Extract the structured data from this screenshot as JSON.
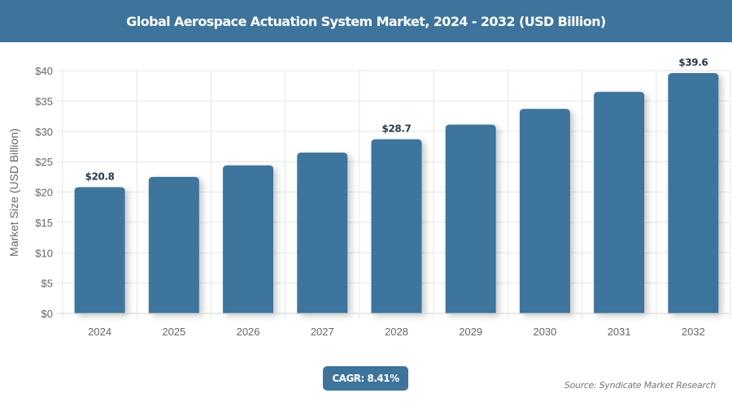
{
  "header": {
    "title": "Global Aerospace Actuation System Market, 2024 - 2032 (USD Billion)"
  },
  "chart_data": {
    "type": "bar",
    "title": "Global Aerospace Actuation System Market, 2024 - 2032 (USD Billion)",
    "xlabel": "",
    "ylabel": "Market Size (USD Billion)",
    "categories": [
      "2024",
      "2025",
      "2026",
      "2027",
      "2028",
      "2029",
      "2030",
      "2031",
      "2032"
    ],
    "values": [
      20.8,
      22.5,
      24.4,
      26.5,
      28.7,
      31.1,
      33.7,
      36.5,
      39.6
    ],
    "data_labels": {
      "0": "$20.8",
      "4": "$28.7",
      "8": "$39.6"
    },
    "ylim": [
      0,
      40
    ],
    "yticks": [
      0,
      5,
      10,
      15,
      20,
      25,
      30,
      35,
      40
    ],
    "ytick_labels": [
      "$0",
      "$5",
      "$10",
      "$15",
      "$20",
      "$25",
      "$30",
      "$35",
      "$40"
    ],
    "grid": true,
    "legend": null,
    "bar_color": "#3e749c"
  },
  "badge": {
    "cagr_label": "CAGR: 8.41%"
  },
  "footer": {
    "source": "Source: Syndicate Market Research"
  },
  "colors": {
    "accent": "#3e749c",
    "grid": "#e5e5e5",
    "axis_text": "#666666",
    "data_label": "#2b3a4a"
  }
}
